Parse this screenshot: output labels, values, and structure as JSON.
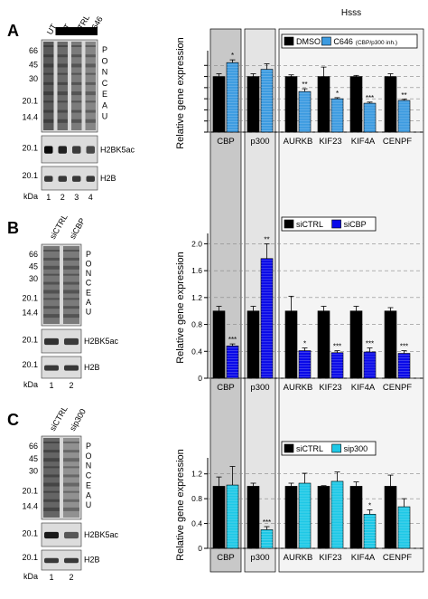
{
  "panels": [
    {
      "letter": "A",
      "blot": {
        "lanes": [
          "UT",
          "UT",
          "CTRL",
          "C646"
        ],
        "lane_numbers": [
          "1",
          "2",
          "3",
          "4"
        ],
        "serum_bar": "Serum starved",
        "mw_ponceau": [
          "66",
          "45",
          "30",
          "20.1",
          "14.4"
        ],
        "mw_h2bk5ac": "20.1",
        "mw_h2b": "20.1",
        "kda": "kDa",
        "ponceau": "PONCEAU",
        "h2bk5ac": "H2BK5ac",
        "h2b": "H2B",
        "stain_level": [
          1.0,
          0.85,
          0.7,
          0.6
        ]
      },
      "chart_data": {
        "type": "bar",
        "ylabel": "Relative gene expression",
        "ylim": [
          0,
          1.4
        ],
        "yticks": [
          "0",
          "0.2",
          "0.4",
          "0.6",
          "0.8",
          "1.0",
          "1.2"
        ],
        "show_tick_labels": false,
        "categories": [
          "CBP",
          "p300",
          "AURKB",
          "KIF23",
          "KIF4A",
          "CENPF"
        ],
        "group_label": "Hsss",
        "series": [
          {
            "name": "DMSO",
            "color": "#000000",
            "values": [
              1.0,
              1.0,
              1.0,
              1.0,
              1.0,
              1.0
            ],
            "errors": [
              0.05,
              0.05,
              0.03,
              0.17,
              0.02,
              0.05
            ]
          },
          {
            "name": "C646",
            "name_suffix": "(CBP/p300 inh.)",
            "color": "#3d9be0",
            "values": [
              1.25,
              1.13,
              0.73,
              0.6,
              0.52,
              0.57
            ],
            "errors": [
              0.05,
              0.1,
              0.05,
              0.02,
              0.02,
              0.02
            ]
          }
        ],
        "significance": [
          "*",
          "",
          "**",
          "*",
          "***",
          "**"
        ]
      }
    },
    {
      "letter": "B",
      "blot": {
        "lanes": [
          "siCTRL",
          "siCBP"
        ],
        "lane_numbers": [
          "1",
          "2"
        ],
        "mw_ponceau": [
          "66",
          "45",
          "30",
          "20.1",
          "14.4"
        ],
        "mw_h2bk5ac": "20.1",
        "mw_h2b": "20.1",
        "kda": "kDa",
        "ponceau": "PONCEAU",
        "h2bk5ac": "H2BK5ac",
        "h2b": "H2B",
        "stain_level": [
          0.75,
          0.7
        ]
      },
      "chart_data": {
        "type": "bar",
        "ylabel": "Relative gene expression",
        "ylim": [
          0,
          2.1
        ],
        "yticks": [
          "0",
          "0.4",
          "0.8",
          "1.2",
          "1.6",
          "2.0"
        ],
        "categories": [
          "CBP",
          "p300",
          "AURKB",
          "KIF23",
          "KIF4A",
          "CENPF"
        ],
        "series": [
          {
            "name": "siCTRL",
            "color": "#000000",
            "values": [
              1.0,
              1.0,
              1.0,
              1.0,
              1.0,
              1.0
            ],
            "errors": [
              0.07,
              0.07,
              0.22,
              0.07,
              0.07,
              0.05
            ]
          },
          {
            "name": "siCBP",
            "color": "#0a0ae8",
            "values": [
              0.48,
              1.78,
              0.41,
              0.38,
              0.39,
              0.37
            ],
            "errors": [
              0.03,
              0.22,
              0.04,
              0.03,
              0.06,
              0.04
            ]
          }
        ],
        "significance": [
          "***",
          "**",
          "*",
          "***",
          "***",
          "***"
        ]
      }
    },
    {
      "letter": "C",
      "blot": {
        "lanes": [
          "siCTRL",
          "sip300"
        ],
        "lane_numbers": [
          "1",
          "2"
        ],
        "mw_ponceau": [
          "66",
          "45",
          "30",
          "20.1",
          "14.4"
        ],
        "mw_h2bk5ac": "20.1",
        "mw_h2b": "20.1",
        "kda": "kDa",
        "ponceau": "PONCEAU",
        "h2bk5ac": "H2BK5ac",
        "h2b": "H2B",
        "stain_level": [
          0.9,
          0.5
        ]
      },
      "chart_data": {
        "type": "bar",
        "ylabel": "Relative gene expression",
        "ylim": [
          0,
          1.4
        ],
        "yticks": [
          "0",
          "0.4",
          "0.8",
          "1.2"
        ],
        "categories": [
          "CBP",
          "p300",
          "AURKB",
          "KIF23",
          "KIF4A",
          "CENPF"
        ],
        "series": [
          {
            "name": "siCTRL",
            "color": "#000000",
            "values": [
              1.0,
              1.0,
              1.0,
              1.0,
              1.0,
              1.0
            ],
            "errors": [
              0.15,
              0.05,
              0.05,
              0.01,
              0.07,
              0.18
            ]
          },
          {
            "name": "sip300",
            "color": "#1ec8e6",
            "values": [
              1.02,
              0.3,
              1.05,
              1.08,
              0.55,
              0.67
            ],
            "errors": [
              0.3,
              0.05,
              0.16,
              0.15,
              0.07,
              0.13
            ]
          }
        ],
        "significance": [
          "",
          "***",
          "",
          "",
          "*",
          ""
        ]
      }
    }
  ]
}
